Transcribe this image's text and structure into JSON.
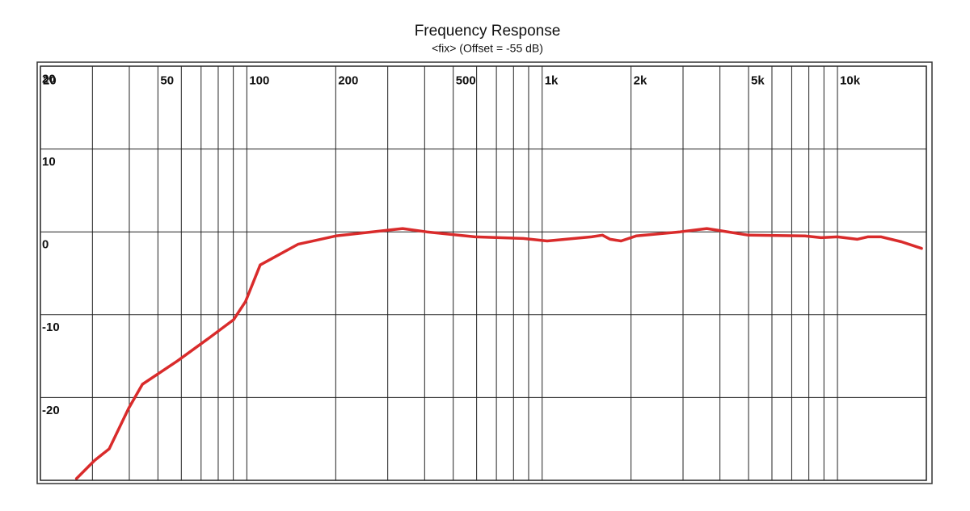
{
  "chart_data": {
    "type": "line",
    "title": "Frequency Response",
    "subtitle": "<fix> (Offset = -55 dB)",
    "xscale": "log",
    "xlim": [
      20,
      20000
    ],
    "ylim": [
      -30,
      20
    ],
    "xticks": [
      20,
      50,
      100,
      200,
      500,
      {
        "value": 1000,
        "label": "1k"
      },
      {
        "value": 2000,
        "label": "2k"
      },
      {
        "value": 5000,
        "label": "5k"
      },
      {
        "value": 10000,
        "label": "10k"
      }
    ],
    "x_minor_ticks": [
      30,
      40,
      60,
      70,
      80,
      90,
      300,
      400,
      600,
      700,
      800,
      900,
      3000,
      4000,
      6000,
      7000,
      8000,
      9000
    ],
    "yticks": [
      20,
      10,
      0,
      -10,
      -20
    ],
    "grid": true,
    "series": [
      {
        "color": "#d92b2b",
        "x": [
          26.5,
          30.5,
          34.2,
          39.8,
          44.3,
          58.1,
          74.6,
          90.2,
          99,
          111,
          149,
          200,
          337,
          406,
          592,
          863,
          1040,
          1470,
          1600,
          1700,
          1850,
          2080,
          2930,
          3610,
          5000,
          7760,
          8800,
          10000,
          11660,
          12660,
          14070,
          16470,
          19270
        ],
        "values": [
          -29.8,
          -27.6,
          -26.2,
          -21.3,
          -18.4,
          -15.6,
          -12.8,
          -10.6,
          -8.4,
          -4.0,
          -1.5,
          -0.5,
          0.4,
          0,
          -0.6,
          -0.8,
          -1.1,
          -0.6,
          -0.4,
          -0.9,
          -1.1,
          -0.5,
          0,
          0.4,
          -0.4,
          -0.5,
          -0.7,
          -0.6,
          -0.9,
          -0.6,
          -0.6,
          -1.2,
          -2.0
        ]
      }
    ]
  }
}
